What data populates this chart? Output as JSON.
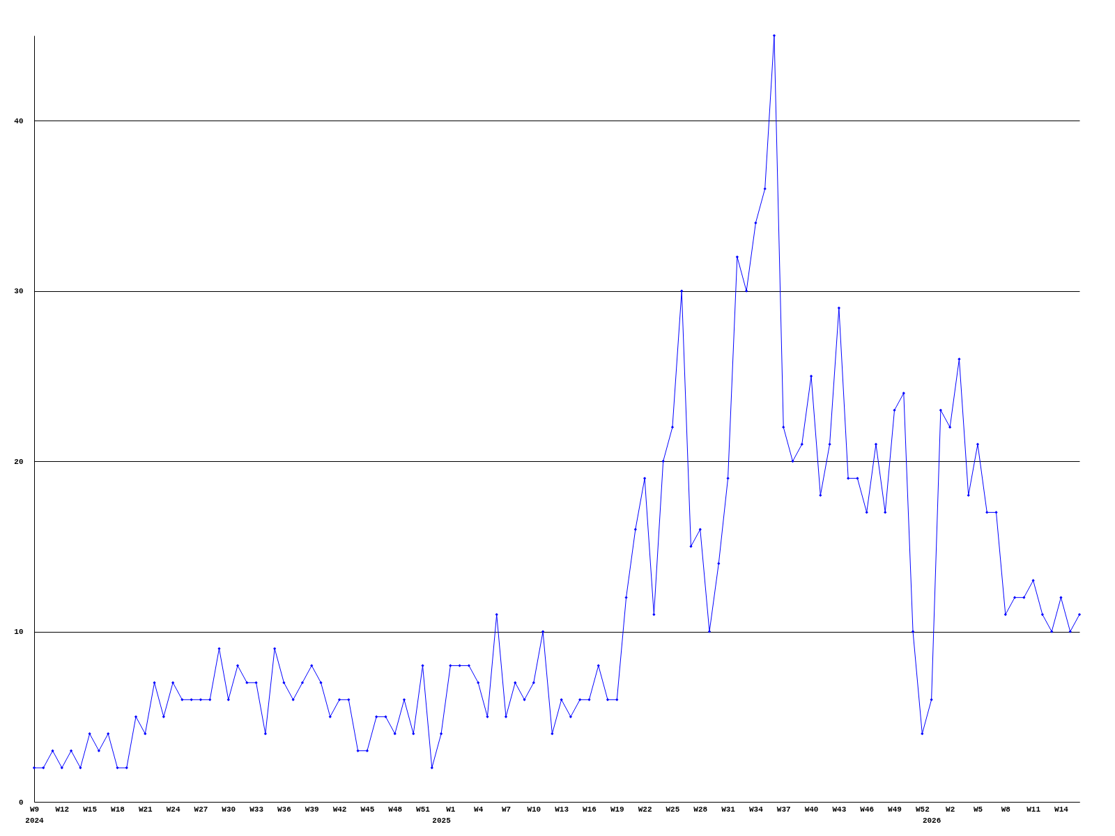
{
  "chart_data": {
    "type": "line",
    "categories": [
      "W9\n2024",
      null,
      null,
      "W12",
      null,
      null,
      "W15",
      null,
      null,
      "W18",
      null,
      null,
      "W21",
      null,
      null,
      "W24",
      null,
      null,
      "W27",
      null,
      null,
      "W30",
      null,
      null,
      "W33",
      null,
      null,
      "W36",
      null,
      null,
      "W39",
      null,
      null,
      "W42",
      null,
      null,
      "W45",
      null,
      null,
      "W48",
      null,
      null,
      "W51",
      null,
      "\n2025",
      "W1",
      null,
      null,
      "W4",
      null,
      null,
      "W7",
      null,
      null,
      "W10",
      null,
      null,
      "W13",
      null,
      null,
      "W16",
      null,
      null,
      "W19",
      null,
      null,
      "W22",
      null,
      null,
      "W25",
      null,
      null,
      "W28",
      null,
      null,
      "W31",
      null,
      null,
      "W34",
      null,
      null,
      "W37",
      null,
      null,
      "W40",
      null,
      null,
      "W43",
      null,
      null,
      "W46",
      null,
      null,
      "W49",
      null,
      null,
      "W52",
      "\n2026",
      null,
      "W2",
      null,
      null,
      "W5",
      null,
      null,
      "W8",
      null,
      null,
      "W11",
      null,
      null,
      "W14",
      null,
      null
    ],
    "series": [
      {
        "color": "#0000ff",
        "values": [
          2,
          2,
          3,
          2,
          3,
          2,
          4,
          3,
          4,
          2,
          2,
          5,
          4,
          7,
          5,
          7,
          6,
          6,
          6,
          6,
          9,
          6,
          8,
          7,
          7,
          4,
          9,
          7,
          6,
          7,
          8,
          7,
          5,
          6,
          6,
          3,
          3,
          5,
          5,
          4,
          6,
          4,
          8,
          2,
          4,
          8,
          8,
          8,
          7,
          5,
          11,
          5,
          7,
          6,
          7,
          10,
          4,
          6,
          5,
          6,
          6,
          8,
          6,
          6,
          12,
          16,
          19,
          11,
          20,
          22,
          30,
          15,
          16,
          10,
          14,
          19,
          32,
          30,
          34,
          36,
          45,
          22,
          20,
          21,
          25,
          18,
          21,
          29,
          19,
          19,
          17,
          21,
          17,
          23,
          24,
          10,
          4,
          6,
          23,
          22,
          26,
          18,
          21,
          17,
          17,
          11,
          12,
          12,
          13,
          11,
          10,
          12,
          10,
          11
        ]
      }
    ],
    "ylim": [
      0,
      45
    ],
    "yticks": [
      0,
      10,
      20,
      30,
      40
    ],
    "grid": "y",
    "marker": "diamond",
    "line_style": "solid"
  }
}
